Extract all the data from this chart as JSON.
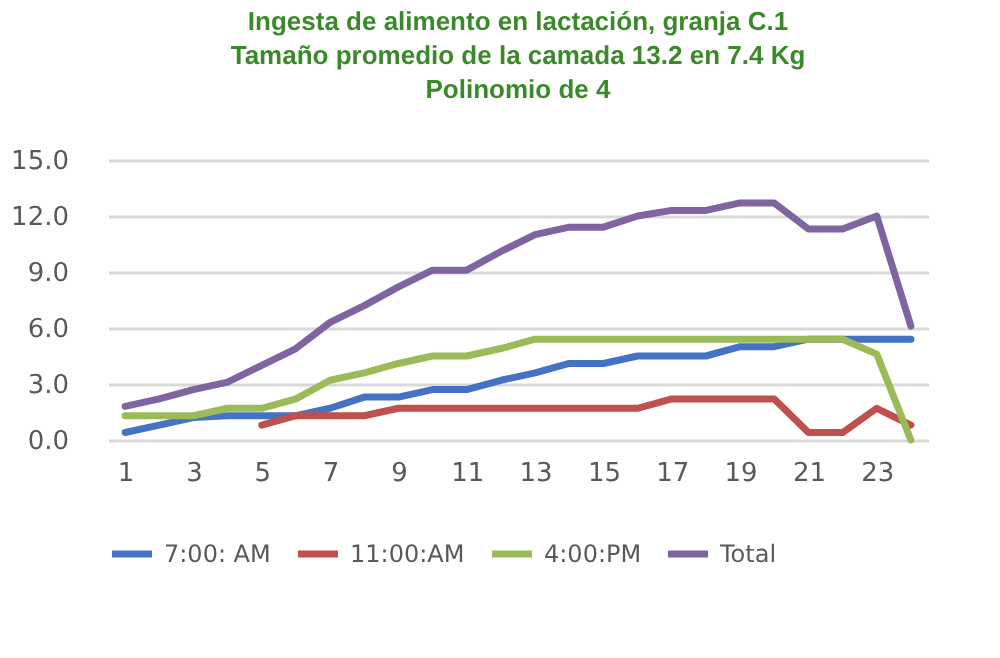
{
  "chart_data": {
    "type": "line",
    "title": "Ingesta de alimento en lactación, granja C.1\nTamaño promedio de la camada 13.2 en 7.4 Kg\nPolinomio de 4",
    "x": [
      1,
      2,
      3,
      4,
      5,
      6,
      7,
      8,
      9,
      10,
      11,
      12,
      13,
      14,
      15,
      16,
      17,
      18,
      19,
      20,
      21,
      22,
      23,
      24
    ],
    "xlim": [
      0.5,
      24.5
    ],
    "xticks": [
      1,
      3,
      5,
      7,
      9,
      11,
      13,
      15,
      17,
      19,
      21,
      23
    ],
    "ylim": [
      0,
      15
    ],
    "yticks": [
      {
        "value": 0,
        "label": "0.0"
      },
      {
        "value": 3,
        "label": "3.0"
      },
      {
        "value": 6,
        "label": "6.0"
      },
      {
        "value": 9,
        "label": "9.0"
      },
      {
        "value": 12,
        "label": "12.0"
      },
      {
        "value": 15,
        "label": "15.0"
      }
    ],
    "series": [
      {
        "name": "7:00: AM",
        "color": "#4472c4",
        "values": [
          0.4,
          0.8,
          1.2,
          1.3,
          1.3,
          1.3,
          1.7,
          2.3,
          2.3,
          2.7,
          2.7,
          3.2,
          3.6,
          4.1,
          4.1,
          4.5,
          4.5,
          4.5,
          5.0,
          5.0,
          5.4,
          5.4,
          5.4,
          5.4
        ]
      },
      {
        "name": "11:00:AM",
        "color": "#c0504d",
        "values": [
          null,
          null,
          null,
          null,
          0.8,
          1.3,
          1.3,
          1.3,
          1.7,
          1.7,
          1.7,
          1.7,
          1.7,
          1.7,
          1.7,
          1.7,
          2.2,
          2.2,
          2.2,
          2.2,
          0.4,
          0.4,
          1.7,
          0.8
        ]
      },
      {
        "name": "4:00:PM",
        "color": "#9bbb59",
        "values": [
          1.3,
          1.3,
          1.3,
          1.7,
          1.7,
          2.2,
          3.2,
          3.6,
          4.1,
          4.5,
          4.5,
          4.9,
          5.4,
          5.4,
          5.4,
          5.4,
          5.4,
          5.4,
          5.4,
          5.4,
          5.4,
          5.4,
          4.6,
          0
        ]
      },
      {
        "name": "Total",
        "color": "#8064a2",
        "values": [
          1.8,
          2.2,
          2.7,
          3.1,
          4.0,
          4.9,
          6.3,
          7.2,
          8.2,
          9.1,
          9.1,
          10.1,
          11.0,
          11.4,
          11.4,
          12.0,
          12.3,
          12.3,
          12.7,
          12.7,
          11.3,
          11.3,
          12.0,
          6.1
        ]
      }
    ],
    "grid": "y",
    "legend": "bottom",
    "line_style": "solid",
    "marker": "none"
  }
}
